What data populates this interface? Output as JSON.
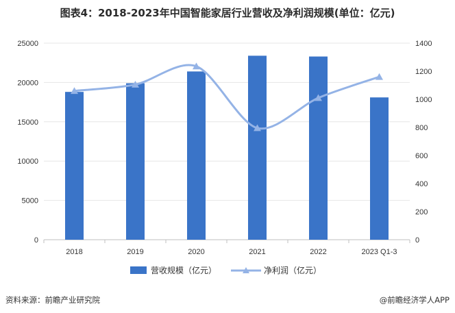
{
  "title": "图表4：2018-2023年中国智能家居行业营收及净利润规模(单位：亿元)",
  "watermark": "前瞻产业研究院",
  "footer": {
    "source": "资料来源：前瞻产业研究院",
    "brand": "@前瞻经济学人APP"
  },
  "colors": {
    "bar": "#3a74c8",
    "line": "#94b3e6",
    "grid": "#e6e6e6",
    "axis": "#bfbfbf",
    "text": "#333333"
  },
  "chart_data": {
    "type": "bar",
    "categories": [
      "2018",
      "2019",
      "2020",
      "2021",
      "2022",
      "2023 Q1-3"
    ],
    "series": [
      {
        "name": "营收规模（亿元）",
        "type": "bar",
        "axis": "left",
        "values": [
          18800,
          19900,
          21400,
          23400,
          23300,
          18100
        ]
      },
      {
        "name": "净利润（亿元）",
        "type": "line",
        "axis": "right",
        "marker": "triangle",
        "smooth": true,
        "values": [
          1060,
          1105,
          1235,
          795,
          1010,
          1160
        ]
      }
    ],
    "y_left": {
      "min": 0,
      "max": 25000,
      "ticks": [
        0,
        5000,
        10000,
        15000,
        20000,
        25000
      ]
    },
    "y_right": {
      "min": 0,
      "max": 1400,
      "ticks": [
        0,
        200,
        400,
        600,
        800,
        1000,
        1200,
        1400
      ]
    },
    "grid": true,
    "legend_position": "bottom"
  }
}
